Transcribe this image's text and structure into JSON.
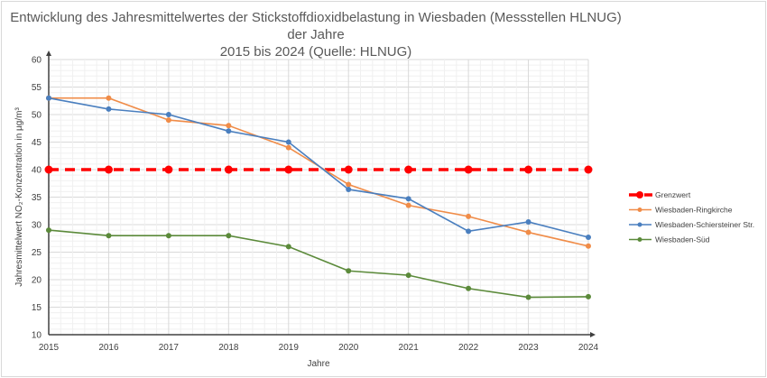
{
  "chart_data": {
    "type": "line",
    "title_line1": "Entwicklung des Jahresmittelwertes der Stickstoffdioxidbelastung in Wiesbaden (Messstellen HLNUG) der Jahre",
    "title_line2": "2015 bis 2024 (Quelle: HLNUG)",
    "xlabel": "Jahre",
    "ylabel": "Jahresmittelwert NO₂-Konzentration in µg/m³",
    "x": [
      "2015",
      "2016",
      "2017",
      "2018",
      "2019",
      "2020",
      "2021",
      "2022",
      "2023",
      "2024"
    ],
    "yticks": [
      "10",
      "15",
      "20",
      "25",
      "30",
      "35",
      "40",
      "45",
      "50",
      "55",
      "60"
    ],
    "ylim": [
      10,
      60
    ],
    "grid": true,
    "legend_position": "right",
    "series": [
      {
        "name": "Grenzwert",
        "color": "#ff0000",
        "dashed": true,
        "values": [
          40,
          40,
          40,
          40,
          40,
          40,
          40,
          40,
          40,
          40
        ]
      },
      {
        "name": "Wiesbaden-Ringkirche",
        "color": "#f08c48",
        "values": [
          53,
          53,
          49,
          48,
          44,
          37.3,
          33.5,
          31.5,
          28.6,
          26.1
        ]
      },
      {
        "name": "Wiesbaden-Schiersteiner Str.",
        "color": "#4a7fbf",
        "values": [
          53,
          51,
          50,
          47,
          45,
          36.4,
          34.7,
          28.8,
          30.5,
          27.7
        ]
      },
      {
        "name": "Wiesbaden-Süd",
        "color": "#5b8a3a",
        "values": [
          29,
          28,
          28,
          28,
          26,
          21.6,
          20.8,
          18.4,
          16.8,
          16.9
        ]
      }
    ]
  }
}
